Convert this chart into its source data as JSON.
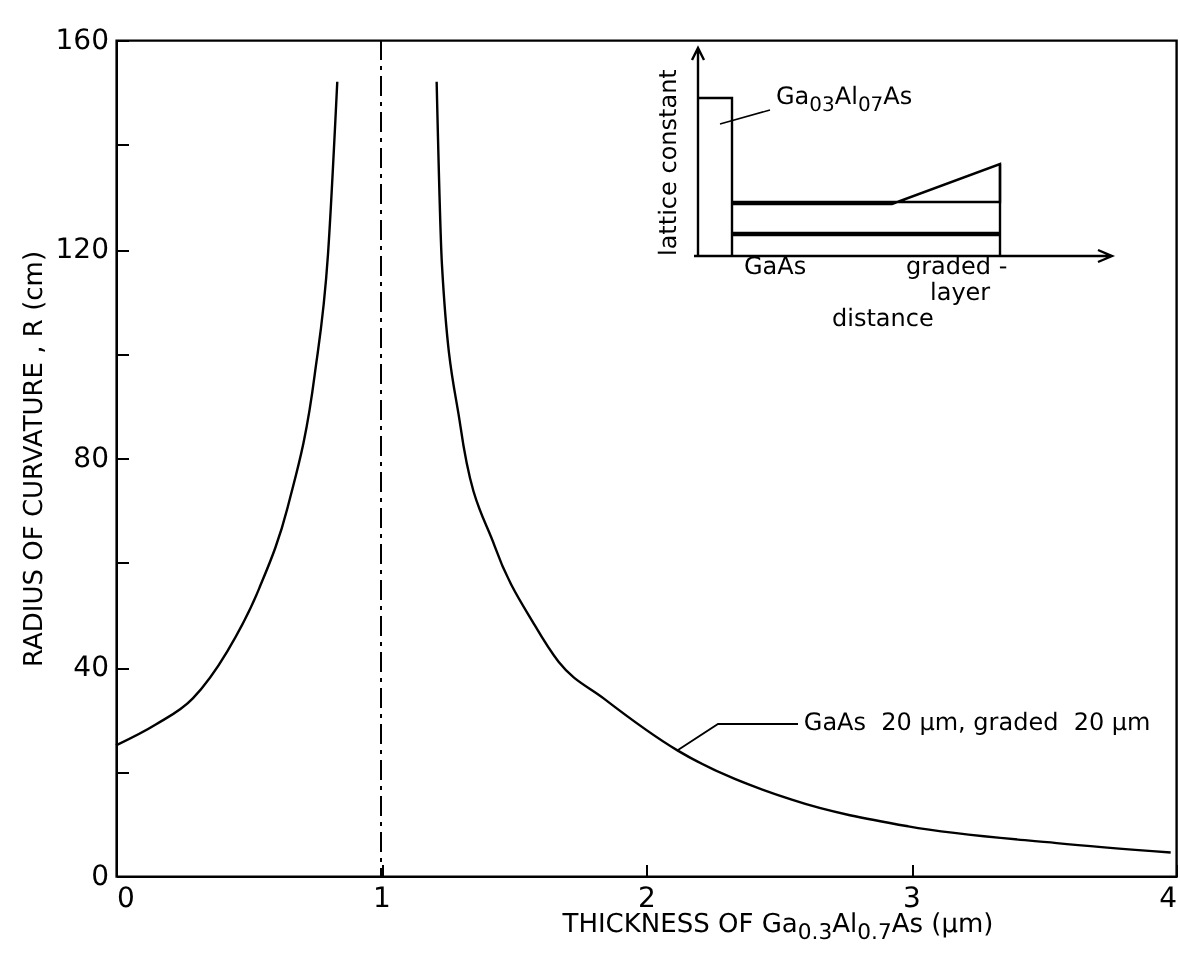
{
  "chart_data": {
    "type": "line",
    "xlabel": "THICKNESS OF  Ga$_{0.3}$Al$_{0.7}$As   (μm)",
    "ylabel": "RADIUS OF CURVATURE , R        (cm)",
    "xlim": [
      0,
      4
    ],
    "ylim": [
      0,
      160
    ],
    "xticks": [
      0,
      1,
      2,
      3,
      4
    ],
    "yticks": [
      0,
      {
        "value": 20,
        "label": null
      },
      40,
      {
        "value": 60,
        "label": null
      },
      80,
      {
        "value": 100,
        "label": null
      },
      120,
      {
        "value": 140,
        "label": null
      },
      160
    ],
    "series": [
      {
        "color": "#000000",
        "x": [
          0,
          0.15,
          0.29,
          0.42,
          0.54,
          0.65,
          0.75,
          0.8,
          0.835
        ],
        "values": [
          25,
          29,
          34,
          43,
          55,
          71,
          96,
          119,
          152
        ]
      },
      {
        "color": "#000000",
        "x": [
          1.21,
          1.23,
          1.3,
          1.43,
          1.58,
          1.67,
          1.84,
          2.12,
          2.55,
          2.99,
          3.55,
          3.98
        ],
        "values": [
          152,
          117,
          86,
          63,
          48,
          41,
          34,
          24,
          14.6,
          9.5,
          6.3,
          4.5
        ]
      }
    ],
    "ref_lines": [
      {
        "axis": "x",
        "value": 1,
        "line_style": "dashed",
        "color": "#000000"
      }
    ],
    "annotations": [
      {
        "text": "GaAs  20 μm, graded  20 μm",
        "x": 2.12,
        "y": 24
      },
      "Ga$_{03}$Al$_{07}$As",
      "lattice constant",
      "GaAs",
      "graded -layer",
      "distance"
    ],
    "grid": false,
    "marker": "none",
    "line_style": "solid"
  }
}
